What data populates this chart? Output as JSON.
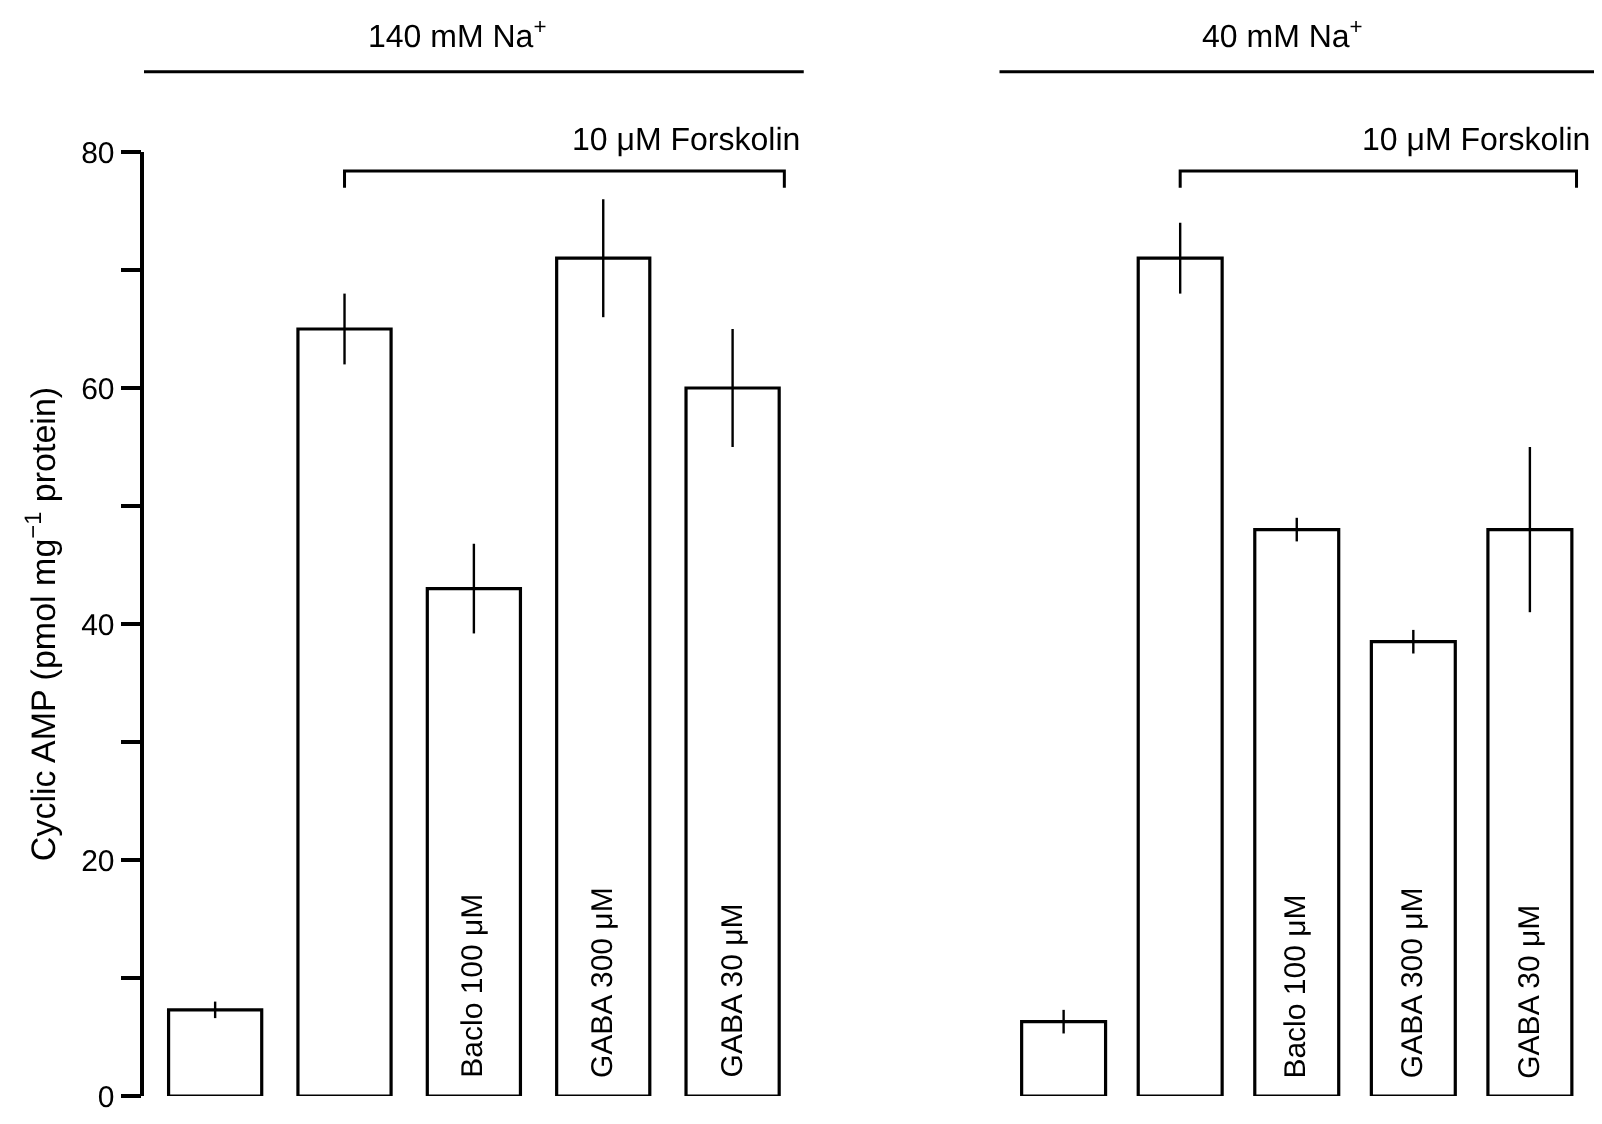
{
  "chart_data": [
    {
      "type": "bar",
      "ylabel": "Cyclic AMP (pmol mg$^{−1}$ protein)",
      "categories": [
        null,
        null,
        "Baclo 100 μM",
        "GABA 300 μM",
        "GABA 30 μM"
      ],
      "values": [
        7.3,
        65,
        43,
        71,
        60
      ],
      "errors": [
        0.7,
        3,
        3.8,
        5,
        5
      ],
      "color": "#ffffff",
      "ylim": [
        0,
        80
      ],
      "yticks": [
        0,
        {
          "value": 10,
          "label": null
        },
        20,
        {
          "value": 30,
          "label": null
        },
        40,
        {
          "value": 50,
          "label": null
        },
        60,
        {
          "value": 70,
          "label": null
        },
        80
      ],
      "annotations": [
        "140 mM Na$^{+}$",
        "10 μM Forskolin"
      ]
    },
    {
      "type": "bar",
      "categories": [
        null,
        null,
        "Baclo 100 μM",
        "GABA 300 μM",
        "GABA 30 μM"
      ],
      "values": [
        6.3,
        71,
        48,
        38.5,
        48
      ],
      "errors": [
        1,
        3,
        1,
        1,
        7
      ],
      "color": "#ffffff",
      "ylim": [
        0,
        80
      ],
      "tick_labels": false,
      "annotations": [
        "40 mM Na$^{+}$",
        "10 μM Forskolin"
      ]
    }
  ]
}
